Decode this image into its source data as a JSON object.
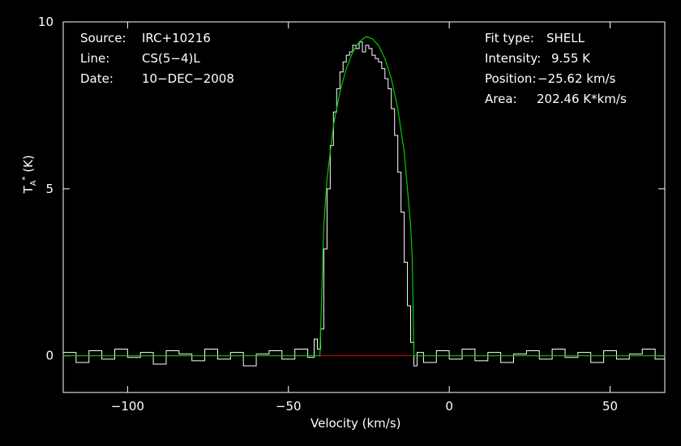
{
  "info_left": {
    "source_label": "Source:",
    "source_value": "IRC+10216",
    "line_label": "Line:",
    "line_value": "CS(5−4)L",
    "date_label": "Date:",
    "date_value": "10−DEC−2008"
  },
  "info_right": {
    "fit_label": "Fit type:",
    "fit_value": "SHELL",
    "intensity_label": "Intensity:",
    "intensity_value": "9.55 K",
    "position_label": "Position:",
    "position_value": "−25.62 km/s",
    "area_label": "Area:",
    "area_value": "202.46 K*km/s"
  },
  "colors": {
    "spectrum": "#ffffff",
    "fit": "#00cc00",
    "baseline": "#cc0000",
    "axes": "#ffffff",
    "background": "#000000"
  },
  "chart_data": {
    "type": "line",
    "xlabel": "Velocity (km/s)",
    "ylabel": "T_A* (K)",
    "xlim": [
      -120,
      67
    ],
    "ylim": [
      -1.1,
      10
    ],
    "xticks": [
      -100,
      -50,
      0,
      50
    ],
    "xtick_labels": [
      "−100",
      "−50",
      "0",
      "50"
    ],
    "yticks": [
      0,
      5,
      10
    ],
    "ytick_labels": [
      "0",
      "5",
      "10"
    ],
    "fit": {
      "model": "SHELL",
      "center": -25.62,
      "peak": 9.55,
      "v_start": -40.2,
      "v_end": -11.0
    },
    "baseline_segment": {
      "x": [
        -40.2,
        -11.0
      ],
      "y": 0
    },
    "series": [
      {
        "name": "spectrum",
        "x": [
          -120,
          -116,
          -112,
          -108,
          -104,
          -100,
          -96,
          -92,
          -88,
          -84,
          -80,
          -76,
          -72,
          -68,
          -64,
          -60,
          -56,
          -52,
          -48,
          -44,
          -42,
          -41,
          -40,
          -39,
          -38,
          -37,
          -36,
          -35,
          -34,
          -33,
          -32,
          -31,
          -30,
          -29,
          -28,
          -27,
          -26,
          -25,
          -24,
          -23,
          -22,
          -21,
          -20,
          -19,
          -18,
          -17,
          -16,
          -15,
          -14,
          -13,
          -12,
          -11,
          -10,
          -8,
          -4,
          0,
          4,
          8,
          12,
          16,
          20,
          24,
          28,
          32,
          36,
          40,
          44,
          48,
          52,
          56,
          60,
          64,
          67
        ],
        "y": [
          0.1,
          -0.2,
          0.15,
          -0.1,
          0.2,
          -0.05,
          0.1,
          -0.25,
          0.15,
          0.05,
          -0.15,
          0.2,
          -0.1,
          0.1,
          -0.3,
          0.05,
          0.15,
          -0.1,
          0.2,
          -0.05,
          0.5,
          0.2,
          0.8,
          3.2,
          5.0,
          6.3,
          7.3,
          8.0,
          8.5,
          8.8,
          9.0,
          9.1,
          9.3,
          9.2,
          9.4,
          9.1,
          9.3,
          9.2,
          9.0,
          8.9,
          8.8,
          8.6,
          8.3,
          8.0,
          7.4,
          6.6,
          5.5,
          4.3,
          2.8,
          1.5,
          0.4,
          -0.3,
          0.1,
          -0.2,
          0.15,
          -0.1,
          0.2,
          -0.15,
          0.1,
          -0.2,
          0.05,
          0.15,
          -0.1,
          0.2,
          -0.05,
          0.1,
          -0.2,
          0.15,
          -0.1,
          0.05,
          0.2,
          -0.1,
          0.1
        ]
      },
      {
        "name": "fit",
        "x": [
          -120,
          -40.2,
          -40.0,
          -39.0,
          -38.0,
          -36.0,
          -34.0,
          -32.0,
          -30.0,
          -28.0,
          -26.0,
          -25.62,
          -24.0,
          -22.0,
          -20.0,
          -18.0,
          -16.0,
          -14.0,
          -12.0,
          -11.5,
          -11.0,
          67
        ],
        "y": [
          0,
          0,
          0.7,
          3.9,
          5.3,
          6.9,
          7.9,
          8.6,
          9.1,
          9.4,
          9.55,
          9.55,
          9.5,
          9.3,
          8.9,
          8.3,
          7.4,
          6.1,
          3.9,
          2.9,
          0,
          0
        ]
      }
    ]
  }
}
